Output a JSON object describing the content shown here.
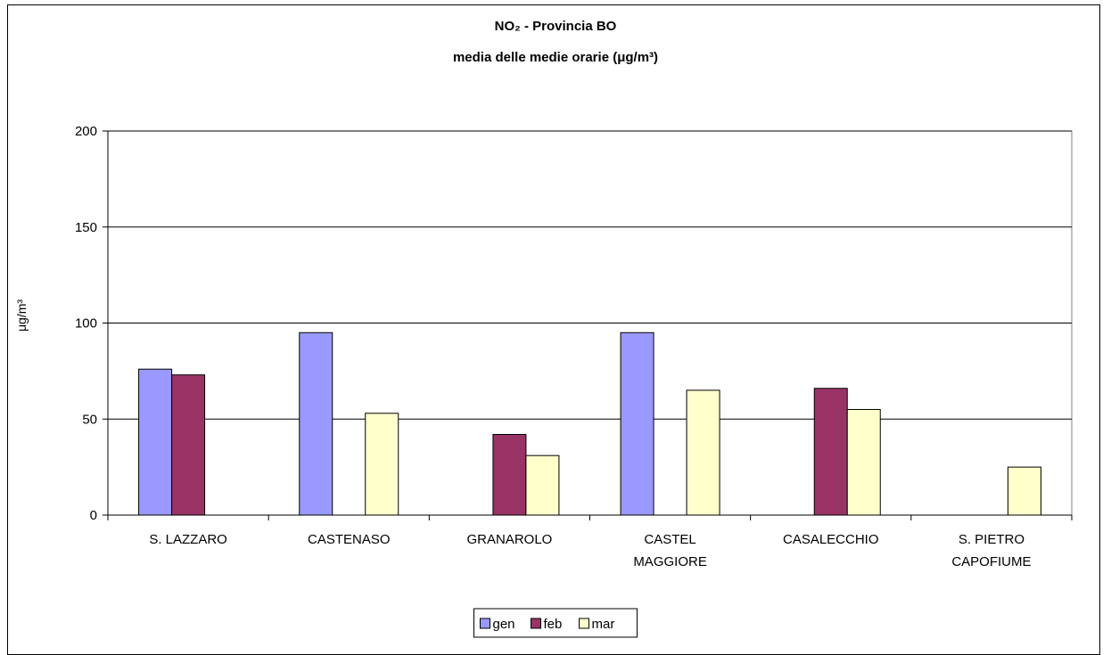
{
  "chart_data": {
    "type": "bar",
    "title": "NO₂ - Provincia BO",
    "subtitle": "media delle medie orarie (μg/m³)",
    "ylabel": "μg/m³",
    "xlabel": "",
    "ylim": [
      0,
      200
    ],
    "yticks": [
      0,
      50,
      100,
      150,
      200
    ],
    "grid": true,
    "legend_position": "bottom",
    "categories": [
      [
        "S. LAZZARO"
      ],
      [
        "CASTENASO"
      ],
      [
        "GRANAROLO"
      ],
      [
        "CASTEL",
        "MAGGIORE"
      ],
      [
        "CASALECCHIO"
      ],
      [
        "S. PIETRO",
        "CAPOFIUME"
      ]
    ],
    "series": [
      {
        "name": "gen",
        "color": "#9999FF",
        "values": [
          76,
          95,
          null,
          95,
          null,
          null
        ]
      },
      {
        "name": "feb",
        "color": "#993366",
        "values": [
          73,
          null,
          42,
          null,
          66,
          null
        ]
      },
      {
        "name": "mar",
        "color": "#FFFFCC",
        "values": [
          null,
          53,
          31,
          65,
          55,
          25
        ]
      }
    ]
  }
}
